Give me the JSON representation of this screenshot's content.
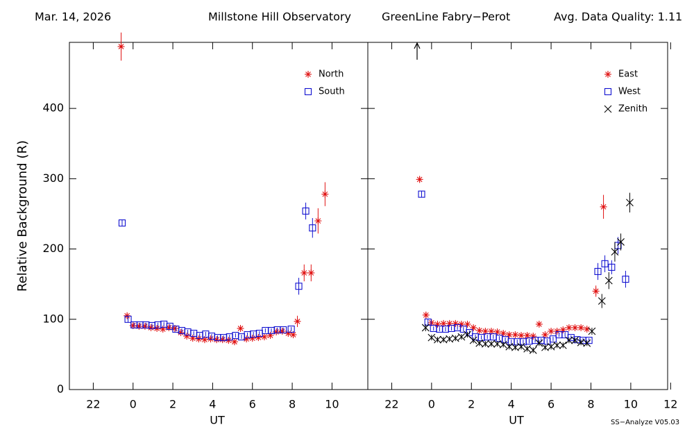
{
  "header": {
    "date": "Mar. 14, 2026",
    "site": "Millstone Hill Observatory",
    "instrument": "GreenLine Fabry−Perot",
    "quality": "Avg. Data Quality: 1.11"
  },
  "footer": "SS−Analyze V05.03",
  "chart_data": [
    {
      "type": "scatter",
      "xlabel": "UT",
      "ylabel": "Relative Background (R)",
      "legend": "upper right",
      "xlim": [
        -3.2,
        11.8
      ],
      "ylim": [
        0,
        494
      ],
      "xticks": [
        {
          "value": -2,
          "label": "22"
        },
        0,
        2,
        4,
        6,
        8,
        10
      ],
      "yticks": [
        0,
        100,
        200,
        300,
        400
      ],
      "series": [
        {
          "name": "North",
          "color": "#e01010",
          "marker": "asterisk",
          "x": [
            -0.6,
            -0.3,
            0,
            0.3,
            0.6,
            0.9,
            1.2,
            1.5,
            1.8,
            2.1,
            2.4,
            2.7,
            3.0,
            3.3,
            3.6,
            3.9,
            4.2,
            4.5,
            4.8,
            5.1,
            5.4,
            5.7,
            6.0,
            6.3,
            6.6,
            6.9,
            7.2,
            7.5,
            7.8,
            8.05,
            8.26,
            8.6,
            8.95,
            9.3,
            9.65
          ],
          "values": [
            488,
            105,
            91,
            90,
            90,
            88,
            87,
            86,
            88,
            87,
            81,
            76,
            73,
            72,
            71,
            72,
            71,
            71,
            70,
            68,
            87,
            72,
            73,
            74,
            75,
            77,
            82,
            83,
            80,
            78,
            97,
            166,
            166,
            240,
            278
          ],
          "errors": [
            20,
            4,
            3,
            3,
            3,
            3,
            3,
            3,
            3,
            3,
            3,
            3,
            3,
            3,
            3,
            3,
            3,
            3,
            3,
            3,
            3,
            3,
            3,
            3,
            3,
            3,
            3,
            3,
            3,
            3,
            8,
            12,
            12,
            18,
            17
          ]
        },
        {
          "name": "South",
          "color": "#1010d0",
          "marker": "square",
          "x": [
            -0.55,
            -0.25,
            0.05,
            0.35,
            0.65,
            0.95,
            1.25,
            1.55,
            1.85,
            2.15,
            2.45,
            2.75,
            3.05,
            3.35,
            3.65,
            3.95,
            4.25,
            4.55,
            4.85,
            5.15,
            5.45,
            5.75,
            6.05,
            6.35,
            6.65,
            6.95,
            7.25,
            7.55,
            7.95,
            8.33,
            8.68,
            9.02
          ],
          "values": [
            237,
            100,
            92,
            92,
            92,
            91,
            92,
            93,
            90,
            86,
            84,
            82,
            80,
            77,
            79,
            76,
            74,
            74,
            75,
            77,
            75,
            78,
            79,
            80,
            84,
            84,
            85,
            85,
            86,
            147,
            254,
            230
          ],
          "errors": [
            4,
            4,
            3,
            3,
            3,
            3,
            3,
            3,
            3,
            3,
            3,
            3,
            3,
            3,
            3,
            3,
            3,
            3,
            3,
            3,
            3,
            3,
            3,
            3,
            3,
            3,
            3,
            3,
            3,
            12,
            12,
            14
          ]
        }
      ]
    },
    {
      "type": "scatter",
      "xlabel": "UT",
      "legend": "upper right",
      "xlim": [
        -3.2,
        11.85
      ],
      "ylim": [
        0,
        494
      ],
      "xticks": [
        {
          "value": -2,
          "label": "22"
        },
        0,
        2,
        4,
        6,
        8,
        10,
        12
      ],
      "series": [
        {
          "name": "East",
          "color": "#e01010",
          "marker": "asterisk",
          "x": [
            -0.6,
            -0.28,
            0,
            0.3,
            0.6,
            0.9,
            1.2,
            1.5,
            1.8,
            2.1,
            2.4,
            2.7,
            3.0,
            3.3,
            3.6,
            3.9,
            4.2,
            4.5,
            4.8,
            5.1,
            5.4,
            5.7,
            6.0,
            6.3,
            6.6,
            6.9,
            7.2,
            7.5,
            7.8,
            8.25,
            8.63
          ],
          "values": [
            299,
            106,
            95,
            93,
            94,
            94,
            94,
            93,
            93,
            88,
            84,
            83,
            83,
            82,
            80,
            78,
            78,
            77,
            77,
            76,
            93,
            78,
            83,
            83,
            85,
            88,
            88,
            88,
            86,
            140,
            260
          ],
          "errors": [
            4,
            4,
            3,
            3,
            3,
            3,
            3,
            3,
            3,
            3,
            3,
            3,
            3,
            3,
            3,
            3,
            3,
            3,
            3,
            3,
            3,
            3,
            3,
            3,
            3,
            3,
            3,
            3,
            3,
            8,
            17
          ]
        },
        {
          "name": "West",
          "color": "#1010d0",
          "marker": "square",
          "x": [
            -0.5,
            -0.18,
            0.1,
            0.4,
            0.7,
            1.0,
            1.3,
            1.6,
            1.9,
            2.2,
            2.5,
            2.8,
            3.1,
            3.4,
            3.7,
            4.0,
            4.3,
            4.6,
            4.9,
            5.2,
            5.5,
            5.8,
            6.1,
            6.4,
            6.7,
            7.0,
            7.3,
            7.6,
            7.9,
            8.35,
            8.7,
            9.04,
            9.36,
            9.74
          ],
          "values": [
            278,
            96,
            87,
            86,
            86,
            87,
            88,
            86,
            81,
            75,
            74,
            75,
            75,
            73,
            71,
            68,
            68,
            68,
            69,
            70,
            70,
            69,
            72,
            78,
            78,
            74,
            71,
            70,
            70,
            168,
            179,
            174,
            205,
            157
          ],
          "errors": [
            4,
            4,
            3,
            3,
            3,
            3,
            3,
            3,
            3,
            3,
            3,
            3,
            3,
            3,
            3,
            3,
            3,
            3,
            3,
            3,
            3,
            3,
            3,
            3,
            3,
            3,
            3,
            3,
            3,
            12,
            12,
            10,
            12,
            12
          ]
        },
        {
          "name": "Zenith",
          "color": "#000000",
          "marker": "x",
          "x": [
            -0.3,
            0,
            0.3,
            0.6,
            0.9,
            1.2,
            1.5,
            1.8,
            2.1,
            2.4,
            2.7,
            3.0,
            3.3,
            3.6,
            3.9,
            4.2,
            4.5,
            4.8,
            5.1,
            5.4,
            5.7,
            6.0,
            6.3,
            6.6,
            6.9,
            7.2,
            7.5,
            7.8,
            8.05,
            8.55,
            8.9,
            9.2,
            9.5,
            9.95
          ],
          "values": [
            88,
            74,
            71,
            71,
            72,
            73,
            75,
            78,
            70,
            66,
            65,
            65,
            65,
            64,
            61,
            60,
            61,
            58,
            56,
            66,
            60,
            61,
            63,
            63,
            70,
            70,
            67,
            66,
            83,
            126,
            155,
            196,
            210,
            266
          ],
          "errors": [
            5,
            4,
            4,
            4,
            4,
            4,
            4,
            4,
            4,
            4,
            4,
            4,
            4,
            4,
            4,
            4,
            4,
            4,
            4,
            4,
            4,
            4,
            4,
            4,
            4,
            4,
            4,
            4,
            5,
            10,
            12,
            14,
            12,
            14
          ]
        }
      ]
    }
  ]
}
